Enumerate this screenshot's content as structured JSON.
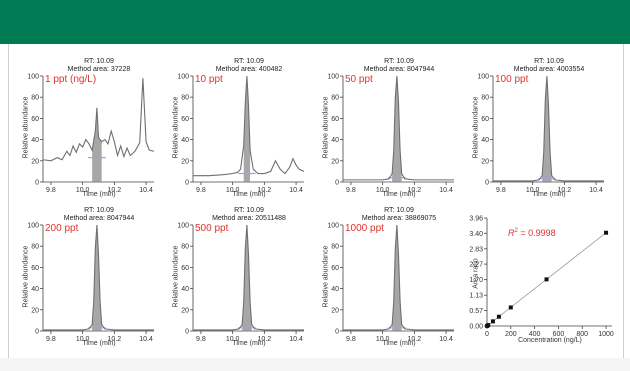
{
  "colors": {
    "header": "#007a52",
    "trace": "#6f6f6f",
    "peak_fill": "#8a8a8a",
    "baseline": "#9aa3e8",
    "label_red": "#e0322e"
  },
  "chromatograms": {
    "x_label": "Time (min)",
    "y_label": "Relative abundance",
    "x_ticks": [
      "9.8",
      "10.0",
      "10.2",
      "10.4"
    ],
    "y_ticks": [
      "0",
      "20",
      "40",
      "60",
      "80",
      "100"
    ],
    "panels": [
      {
        "conc": "1 ppt (ng/L)",
        "rt": "RT: 10.09",
        "area": "Method area: 37228"
      },
      {
        "conc": "10 ppt",
        "rt": "RT: 10.09",
        "area": "Method area: 400482"
      },
      {
        "conc": "50 ppt",
        "rt": "RT: 10.09",
        "area": "Method area: 8047944"
      },
      {
        "conc": "100 ppt",
        "rt": "RT: 10.09",
        "area": "Method area: 4003554"
      },
      {
        "conc": "200 ppt",
        "rt": "RT: 10.09",
        "area": "Method area: 8047944"
      },
      {
        "conc": "500 ppt",
        "rt": "RT: 10.09",
        "area": "Method area: 20511488"
      },
      {
        "conc": "1000 ppt",
        "rt": "RT: 10.09",
        "area": "Method area: 38869075"
      }
    ]
  },
  "calibration": {
    "r2_label": "R",
    "r2_sup": "2",
    "r2_value": " = 0.9998",
    "x_label": "Concentration (ng/L)",
    "y_label": "Area ratio",
    "x_ticks": [
      "0",
      "200",
      "400",
      "600",
      "800",
      "1000"
    ],
    "y_ticks": [
      "0.00",
      "0.57",
      "1.13",
      "1.70",
      "2.27",
      "2.83",
      "3.40",
      "3.96"
    ]
  },
  "chart_data": [
    {
      "type": "line",
      "title": "RT: 10.09 / Method area: 37228",
      "annotation": "1 ppt (ng/L)",
      "xlabel": "Time (min)",
      "ylabel": "Relative abundance",
      "xlim": [
        9.75,
        10.45
      ],
      "ylim": [
        0,
        100
      ],
      "peak_rt": 10.09,
      "x": [
        9.75,
        9.8,
        9.84,
        9.87,
        9.9,
        9.92,
        9.94,
        9.96,
        9.98,
        10.0,
        10.02,
        10.04,
        10.06,
        10.08,
        10.09,
        10.1,
        10.12,
        10.14,
        10.16,
        10.18,
        10.2,
        10.22,
        10.24,
        10.26,
        10.28,
        10.3,
        10.33,
        10.36,
        10.38,
        10.4,
        10.42,
        10.45
      ],
      "y": [
        21,
        20,
        23,
        21,
        29,
        25,
        34,
        28,
        36,
        33,
        40,
        36,
        30,
        48,
        70,
        42,
        38,
        40,
        36,
        48,
        38,
        25,
        34,
        24,
        32,
        25,
        29,
        37,
        98,
        38,
        30,
        29
      ]
    },
    {
      "type": "line",
      "title": "RT: 10.09 / Method area: 400482",
      "annotation": "10 ppt",
      "xlabel": "Time (min)",
      "ylabel": "Relative abundance",
      "xlim": [
        9.75,
        10.45
      ],
      "ylim": [
        0,
        100
      ],
      "peak_rt": 10.09,
      "x": [
        9.75,
        9.85,
        9.95,
        10.0,
        10.03,
        10.05,
        10.07,
        10.08,
        10.09,
        10.1,
        10.11,
        10.13,
        10.16,
        10.2,
        10.24,
        10.27,
        10.3,
        10.33,
        10.36,
        10.38,
        10.4,
        10.42,
        10.45
      ],
      "y": [
        6,
        6,
        7,
        8,
        9,
        12,
        35,
        75,
        100,
        72,
        30,
        12,
        8,
        8,
        10,
        20,
        12,
        8,
        14,
        22,
        16,
        12,
        10
      ]
    },
    {
      "type": "line",
      "title": "RT: 10.09 / Method area: 8047944",
      "annotation": "50 ppt",
      "xlabel": "Time (min)",
      "ylabel": "Relative abundance",
      "xlim": [
        9.75,
        10.45
      ],
      "ylim": [
        0,
        100
      ],
      "peak_rt": 10.09,
      "x": [
        9.75,
        9.9,
        10.0,
        10.04,
        10.06,
        10.07,
        10.08,
        10.09,
        10.1,
        10.11,
        10.12,
        10.14,
        10.2,
        10.3,
        10.45
      ],
      "y": [
        2,
        2,
        2,
        3,
        8,
        30,
        80,
        100,
        75,
        30,
        8,
        3,
        2,
        2,
        2
      ]
    },
    {
      "type": "line",
      "title": "RT: 10.09 / Method area: 4003554",
      "annotation": "100 ppt",
      "xlabel": "Time (min)",
      "ylabel": "Relative abundance",
      "xlim": [
        9.75,
        10.45
      ],
      "ylim": [
        0,
        100
      ],
      "peak_rt": 10.09,
      "x": [
        9.75,
        9.9,
        10.0,
        10.04,
        10.06,
        10.07,
        10.08,
        10.09,
        10.1,
        10.11,
        10.12,
        10.14,
        10.2,
        10.3,
        10.45
      ],
      "y": [
        1,
        1,
        1,
        2,
        6,
        28,
        78,
        100,
        72,
        28,
        6,
        2,
        1,
        1,
        1
      ]
    },
    {
      "type": "line",
      "title": "RT: 10.09 / Method area: 8047944",
      "annotation": "200 ppt",
      "xlabel": "Time (min)",
      "ylabel": "Relative abundance",
      "xlim": [
        9.75,
        10.45
      ],
      "ylim": [
        0,
        100
      ],
      "peak_rt": 10.09,
      "x": [
        9.75,
        9.9,
        10.0,
        10.04,
        10.06,
        10.07,
        10.08,
        10.09,
        10.1,
        10.11,
        10.12,
        10.14,
        10.2,
        10.3,
        10.45
      ],
      "y": [
        1,
        1,
        1,
        2,
        6,
        28,
        78,
        100,
        72,
        28,
        6,
        2,
        1,
        1,
        1
      ]
    },
    {
      "type": "line",
      "title": "RT: 10.09 / Method area: 20511488",
      "annotation": "500 ppt",
      "xlabel": "Time (min)",
      "ylabel": "Relative abundance",
      "xlim": [
        9.75,
        10.45
      ],
      "ylim": [
        0,
        100
      ],
      "peak_rt": 10.09,
      "x": [
        9.75,
        9.9,
        10.0,
        10.04,
        10.06,
        10.07,
        10.08,
        10.09,
        10.1,
        10.11,
        10.12,
        10.14,
        10.2,
        10.3,
        10.45
      ],
      "y": [
        1,
        1,
        1,
        2,
        6,
        28,
        78,
        100,
        72,
        28,
        6,
        2,
        1,
        1,
        1
      ]
    },
    {
      "type": "line",
      "title": "RT: 10.09 / Method area: 38869075",
      "annotation": "1000 ppt",
      "xlabel": "Time (min)",
      "ylabel": "Relative abundance",
      "xlim": [
        9.75,
        10.45
      ],
      "ylim": [
        0,
        100
      ],
      "peak_rt": 10.09,
      "x": [
        9.75,
        9.9,
        10.0,
        10.04,
        10.06,
        10.07,
        10.08,
        10.09,
        10.1,
        10.11,
        10.12,
        10.14,
        10.2,
        10.3,
        10.45
      ],
      "y": [
        1,
        1,
        1,
        2,
        6,
        28,
        78,
        100,
        72,
        28,
        6,
        2,
        1,
        1,
        1
      ]
    },
    {
      "type": "scatter",
      "title": "",
      "annotation": "R2 = 0.9998",
      "xlabel": "Concentration (ng/L)",
      "ylabel": "Area ratio",
      "xlim": [
        0,
        1050
      ],
      "ylim": [
        0,
        3.96
      ],
      "x": [
        1,
        10,
        50,
        100,
        200,
        500,
        1000
      ],
      "y": [
        0.003,
        0.034,
        0.17,
        0.34,
        0.68,
        1.71,
        3.42
      ],
      "fit_line": true
    }
  ]
}
